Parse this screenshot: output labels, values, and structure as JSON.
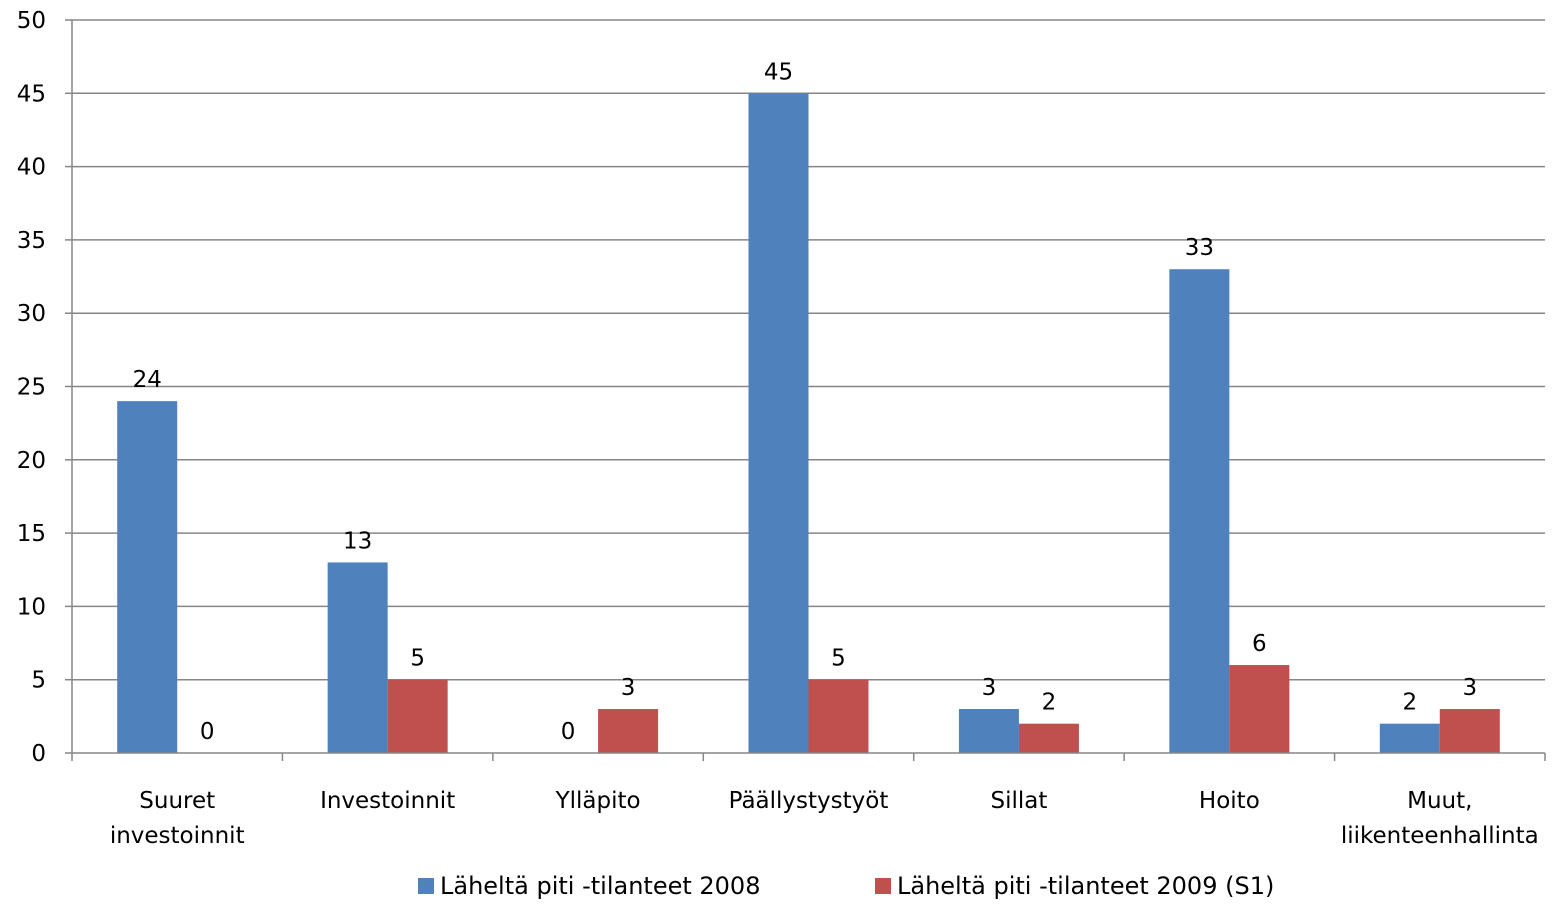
{
  "chart_data": {
    "type": "bar",
    "categories": [
      [
        "Suuret",
        "investoinnit"
      ],
      [
        "Investoinnit"
      ],
      [
        "Ylläpito"
      ],
      [
        "Päällystystyöt"
      ],
      [
        "Sillat"
      ],
      [
        "Hoito"
      ],
      [
        "Muut,",
        "liikenteenhallinta"
      ]
    ],
    "series": [
      {
        "name": "Läheltä piti -tilanteet 2008",
        "color": "#4F81BD",
        "values": [
          24,
          13,
          0,
          45,
          3,
          33,
          2
        ]
      },
      {
        "name": "Läheltä piti -tilanteet 2009 (S1)",
        "color": "#C0504D",
        "values": [
          0,
          5,
          3,
          5,
          2,
          6,
          3
        ]
      }
    ],
    "ylim": [
      0,
      50
    ],
    "yticks": [
      0,
      5,
      10,
      15,
      20,
      25,
      30,
      35,
      40,
      45,
      50
    ],
    "grid": true,
    "legend_position": "bottom",
    "data_labels": true
  }
}
